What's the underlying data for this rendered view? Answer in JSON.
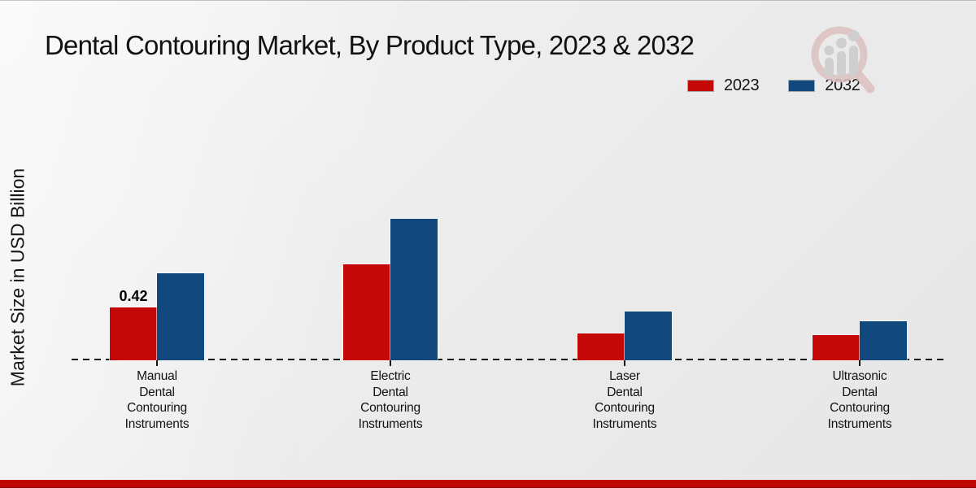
{
  "title": "Dental Contouring Market, By Product Type, 2023 & 2032",
  "y_axis_label": "Market Size in USD Billion",
  "legend": {
    "position": "top-right",
    "items": [
      {
        "label": "2023",
        "color": "#c40808"
      },
      {
        "label": "2032",
        "color": "#11497f"
      }
    ]
  },
  "colors": {
    "series_2023": "#c40808",
    "series_2032": "#11497f",
    "bottom_stripe": "#bf0404",
    "axis_line": "#161616",
    "background": "#ebebeb"
  },
  "icons": {
    "watermark": "magnifier-growth-chart-logo"
  },
  "chart_data": {
    "type": "bar",
    "title": "Dental Contouring Market, By Product Type, 2023 & 2032",
    "xlabel": "",
    "ylabel": "Market Size in USD Billion",
    "categories": [
      "Manual Dental Contouring Instruments",
      "Electric Dental Contouring Instruments",
      "Laser Dental Contouring Instruments",
      "Ultrasonic Dental Contouring Instruments"
    ],
    "category_label_lines": [
      [
        "Manual",
        "Dental",
        "Contouring",
        "Instruments"
      ],
      [
        "Electric",
        "Dental",
        "Contouring",
        "Instruments"
      ],
      [
        "Laser",
        "Dental",
        "Contouring",
        "Instruments"
      ],
      [
        "Ultrasonic",
        "Dental",
        "Contouring",
        "Instruments"
      ]
    ],
    "series": [
      {
        "name": "2023",
        "color": "#c40808",
        "values": [
          0.42,
          0.76,
          0.21,
          0.2
        ]
      },
      {
        "name": "2032",
        "color": "#11497f",
        "values": [
          0.69,
          1.12,
          0.39,
          0.31
        ]
      }
    ],
    "value_labels": [
      {
        "series_index": 0,
        "category_index": 0,
        "text": "0.42"
      }
    ],
    "ylim": [
      0,
      1.3
    ],
    "grid": false,
    "y_axis_ticks_visible": false,
    "baseline_style": "dashed",
    "legend_position": "top-right"
  }
}
